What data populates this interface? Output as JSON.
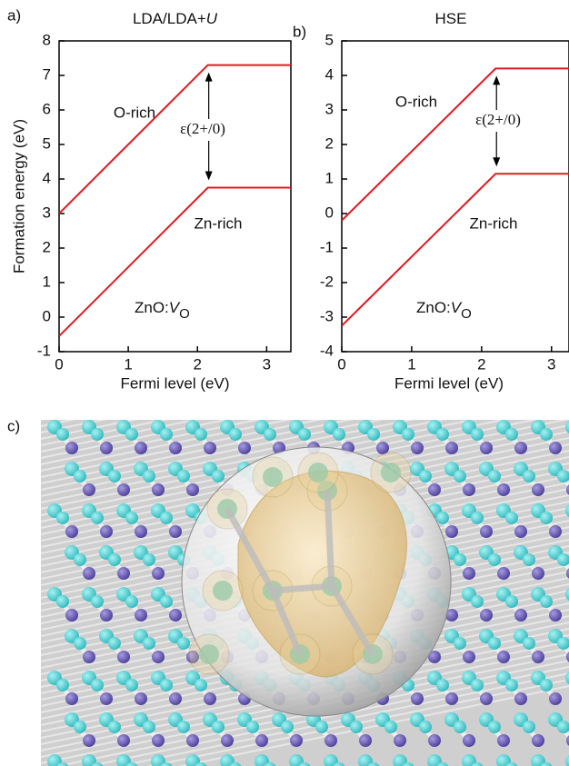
{
  "chart_data": [
    {
      "type": "line",
      "panel_label": "a)",
      "title": "LDA/LDA+",
      "title_italic": "U",
      "xlabel": "Fermi level (eV)",
      "ylabel": "Formation energy (eV)",
      "xlim": [
        0,
        3.35
      ],
      "ylim": [
        -1,
        8
      ],
      "xticks": [
        0,
        1,
        2,
        3
      ],
      "yticks": [
        -1,
        0,
        1,
        2,
        3,
        4,
        5,
        6,
        7,
        8
      ],
      "series": [
        {
          "name": "O-rich",
          "color": "#e3191f",
          "x": [
            0,
            2.15,
            3.35
          ],
          "values": [
            3.0,
            7.3,
            7.3
          ]
        },
        {
          "name": "Zn-rich",
          "color": "#e3191f",
          "x": [
            0,
            2.15,
            3.35
          ],
          "values": [
            -0.55,
            3.75,
            3.75
          ]
        }
      ],
      "transition_label": "ε(2+/0)",
      "annotation_parts": [
        "ZnO:",
        "V",
        "O"
      ]
    },
    {
      "type": "line",
      "panel_label": "b)",
      "title": "HSE",
      "xlabel": "Fermi level (eV)",
      "xlim": [
        0,
        3.25
      ],
      "ylim": [
        -4,
        5
      ],
      "xticks": [
        0,
        1,
        2,
        3
      ],
      "yticks": [
        -4,
        -3,
        -2,
        -1,
        0,
        1,
        2,
        3,
        4,
        5
      ],
      "series": [
        {
          "name": "O-rich",
          "color": "#e3191f",
          "x": [
            0,
            2.2,
            3.25
          ],
          "values": [
            -0.2,
            4.2,
            4.2
          ]
        },
        {
          "name": "Zn-rich",
          "color": "#e3191f",
          "x": [
            0,
            2.2,
            3.25
          ],
          "values": [
            -3.25,
            1.15,
            1.15
          ]
        }
      ],
      "transition_label": "ε(2+/0)",
      "annotation_parts": [
        "ZnO:",
        "V",
        "O"
      ]
    }
  ],
  "panel_c": {
    "label": "c)"
  }
}
